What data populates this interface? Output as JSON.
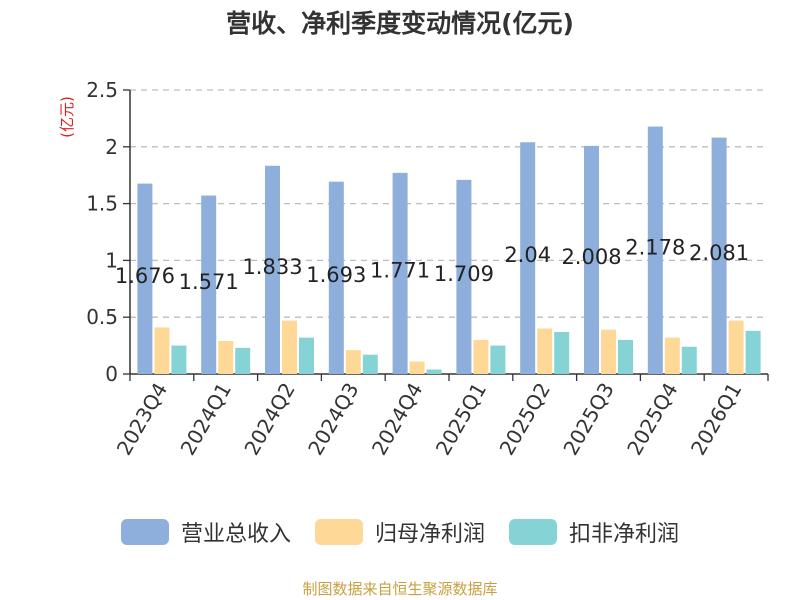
{
  "chart_data": {
    "type": "bar",
    "title": "营收、净利季度变动情况(亿元)",
    "ylabel": "(亿元)",
    "xlabel": "",
    "ylim": [
      0,
      2.5
    ],
    "yticks": [
      "0",
      "0.5",
      "1",
      "1.5",
      "2",
      "2.5"
    ],
    "grid": true,
    "legend_position": "bottom",
    "categories": [
      "2023Q4",
      "2024Q1",
      "2024Q2",
      "2024Q3",
      "2024Q4",
      "2025Q1",
      "2025Q2",
      "2025Q3",
      "2025Q4",
      "2026Q1"
    ],
    "series": [
      {
        "name": "营业总收入",
        "color": "#8eaedb",
        "values": [
          1.676,
          1.571,
          1.833,
          1.693,
          1.771,
          1.709,
          2.04,
          2.008,
          2.178,
          2.081
        ],
        "data_labels": [
          "1.676",
          "1.571",
          "1.833",
          "1.693",
          "1.771",
          "1.709",
          "2.04",
          "2.008",
          "2.178",
          "2.081"
        ]
      },
      {
        "name": "归母净利润",
        "color": "#fdd896",
        "values": [
          0.41,
          0.29,
          0.47,
          0.21,
          0.11,
          0.3,
          0.4,
          0.39,
          0.32,
          0.47
        ]
      },
      {
        "name": "扣非净利润",
        "color": "#86d3d6",
        "values": [
          0.25,
          0.23,
          0.32,
          0.17,
          0.04,
          0.25,
          0.37,
          0.3,
          0.24,
          0.38
        ]
      }
    ]
  },
  "source": "制图数据来自恒生聚源数据库"
}
